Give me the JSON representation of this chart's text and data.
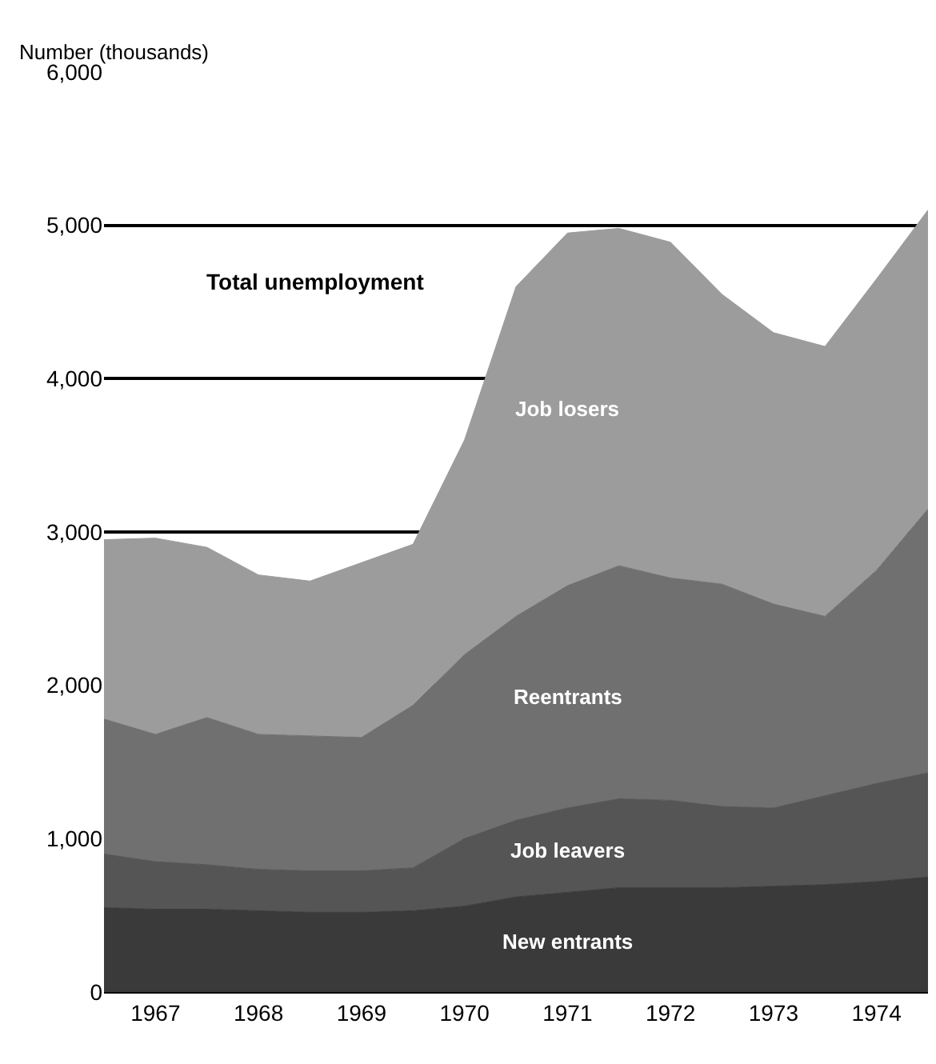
{
  "chart_data": {
    "type": "area",
    "stacked": true,
    "ylabel": "Number (thousands)",
    "annotations": [
      "Total unemployment"
    ],
    "x": [
      1967.0,
      1967.5,
      1968.0,
      1968.5,
      1969.0,
      1969.5,
      1970.0,
      1970.5,
      1971.0,
      1971.5,
      1972.0,
      1972.5,
      1973.0,
      1973.5,
      1974.0,
      1974.5,
      1975.0
    ],
    "series": [
      {
        "name": "New entrants",
        "color": "#3a3a3a",
        "values": [
          550,
          540,
          540,
          530,
          520,
          520,
          530,
          560,
          620,
          650,
          680,
          680,
          680,
          690,
          700,
          720,
          750
        ]
      },
      {
        "name": "Job leavers",
        "color": "#555555",
        "values": [
          350,
          310,
          290,
          270,
          270,
          270,
          280,
          440,
          500,
          550,
          580,
          570,
          530,
          510,
          580,
          640,
          680
        ]
      },
      {
        "name": "Reentrants",
        "color": "#707070",
        "values": [
          880,
          830,
          960,
          880,
          880,
          870,
          1060,
          1200,
          1330,
          1450,
          1520,
          1450,
          1450,
          1330,
          1170,
          1390,
          1720
        ]
      },
      {
        "name": "Job losers",
        "color": "#9c9c9c",
        "values": [
          1170,
          1280,
          1110,
          1040,
          1010,
          1140,
          1050,
          1400,
          2150,
          2300,
          2200,
          2190,
          1890,
          1770,
          1760,
          1900,
          1950
        ]
      }
    ],
    "xlim": [
      1967,
      1975
    ],
    "xticks": [
      {
        "value": 1967.5,
        "label": "1967"
      },
      {
        "value": 1968.5,
        "label": "1968"
      },
      {
        "value": 1969.5,
        "label": "1969"
      },
      {
        "value": 1970.5,
        "label": "1970"
      },
      {
        "value": 1971.5,
        "label": "1971"
      },
      {
        "value": 1972.5,
        "label": "1972"
      },
      {
        "value": 1973.5,
        "label": "1973"
      },
      {
        "value": 1974.5,
        "label": "1974"
      }
    ],
    "ylim": [
      0,
      6000
    ],
    "yticks": [
      0,
      {
        "value": 1000,
        "label": "1,000"
      },
      {
        "value": 2000,
        "label": "2,000"
      },
      {
        "value": 3000,
        "label": "3,000"
      },
      {
        "value": 4000,
        "label": "4,000"
      },
      {
        "value": 5000,
        "label": "5,000"
      },
      {
        "value": 6000,
        "label": "6,000"
      }
    ],
    "grid": "y",
    "legend": false
  }
}
